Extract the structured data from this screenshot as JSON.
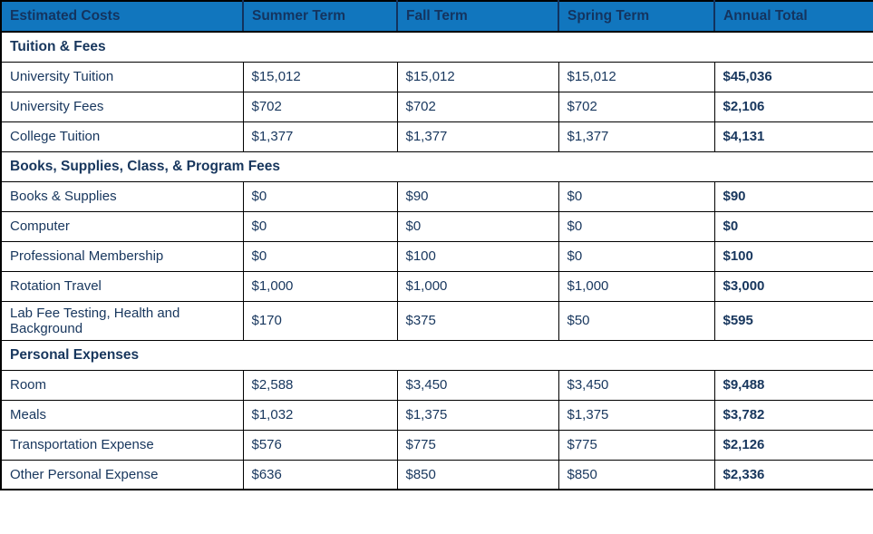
{
  "colors": {
    "header_bg": "#1176BE",
    "header_text": "#14345F",
    "text": "#17365D",
    "border": "#000000"
  },
  "table": {
    "columns": [
      {
        "label": "Estimated Costs"
      },
      {
        "label": "Summer Term"
      },
      {
        "label": "Fall Term"
      },
      {
        "label": "Spring Term"
      },
      {
        "label": "Annual Total"
      }
    ],
    "sections": [
      {
        "title": "Tuition & Fees",
        "rows": [
          {
            "label": "University Tuition",
            "values": [
              "$15,012",
              "$15,012",
              "$15,012",
              "$45,036"
            ]
          },
          {
            "label": "University Fees",
            "values": [
              "$702",
              "$702",
              "$702",
              "$2,106"
            ]
          },
          {
            "label": "College Tuition",
            "values": [
              "$1,377",
              "$1,377",
              "$1,377",
              "$4,131"
            ]
          }
        ]
      },
      {
        "title": "Books, Supplies, Class, & Program Fees",
        "rows": [
          {
            "label": "Books & Supplies",
            "values": [
              "$0",
              "$90",
              "$0",
              "$90"
            ]
          },
          {
            "label": "Computer",
            "values": [
              "$0",
              "$0",
              "$0",
              "$0"
            ]
          },
          {
            "label": "Professional Membership",
            "values": [
              "$0",
              "$100",
              "$0",
              "$100"
            ]
          },
          {
            "label": "Rotation Travel",
            "values": [
              "$1,000",
              "$1,000",
              "$1,000",
              "$3,000"
            ]
          },
          {
            "label": "Lab Fee Testing, Health and Background",
            "values": [
              "$170",
              "$375",
              "$50",
              "$595"
            ]
          }
        ]
      },
      {
        "title": "Personal Expenses",
        "rows": [
          {
            "label": "Room",
            "values": [
              "$2,588",
              "$3,450",
              "$3,450",
              "$9,488"
            ]
          },
          {
            "label": "Meals",
            "values": [
              "$1,032",
              "$1,375",
              "$1,375",
              "$3,782"
            ]
          },
          {
            "label": "Transportation Expense",
            "values": [
              "$576",
              "$775",
              "$775",
              "$2,126"
            ]
          },
          {
            "label": "Other Personal Expense",
            "values": [
              "$636",
              "$850",
              "$850",
              "$2,336"
            ]
          }
        ]
      }
    ]
  },
  "chart_data": {
    "type": "table",
    "title": "Estimated Costs",
    "columns": [
      "Estimated Costs",
      "Summer Term",
      "Fall Term",
      "Spring Term",
      "Annual Total"
    ],
    "rows": [
      [
        "Tuition & Fees",
        "",
        "",
        "",
        ""
      ],
      [
        "University Tuition",
        "$15,012",
        "$15,012",
        "$15,012",
        "$45,036"
      ],
      [
        "University Fees",
        "$702",
        "$702",
        "$702",
        "$2,106"
      ],
      [
        "College Tuition",
        "$1,377",
        "$1,377",
        "$1,377",
        "$4,131"
      ],
      [
        "Books, Supplies, Class, & Program Fees",
        "",
        "",
        "",
        ""
      ],
      [
        "Books & Supplies",
        "$0",
        "$90",
        "$0",
        "$90"
      ],
      [
        "Computer",
        "$0",
        "$0",
        "$0",
        "$0"
      ],
      [
        "Professional Membership",
        "$0",
        "$100",
        "$0",
        "$100"
      ],
      [
        "Rotation Travel",
        "$1,000",
        "$1,000",
        "$1,000",
        "$3,000"
      ],
      [
        "Lab Fee Testing, Health and Background",
        "$170",
        "$375",
        "$50",
        "$595"
      ],
      [
        "Personal Expenses",
        "",
        "",
        "",
        ""
      ],
      [
        "Room",
        "$2,588",
        "$3,450",
        "$3,450",
        "$9,488"
      ],
      [
        "Meals",
        "$1,032",
        "$1,375",
        "$1,375",
        "$3,782"
      ],
      [
        "Transportation Expense",
        "$576",
        "$775",
        "$775",
        "$2,126"
      ],
      [
        "Other Personal Expense",
        "$636",
        "$850",
        "$850",
        "$2,336"
      ]
    ]
  }
}
